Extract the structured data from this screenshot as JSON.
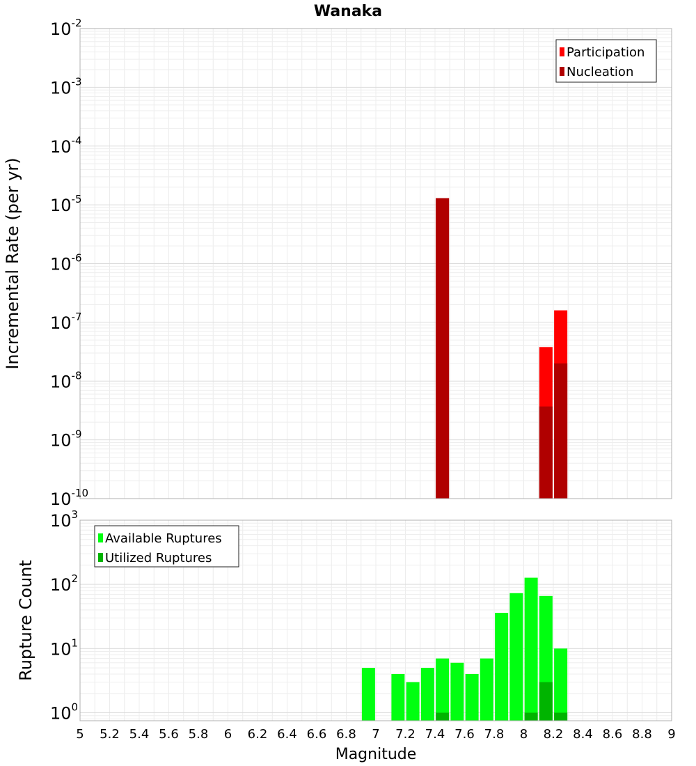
{
  "chart_data": [
    {
      "type": "bar",
      "title": "Wanaka",
      "xlabel": "Magnitude",
      "ylabel": "Incremental Rate (per yr)",
      "xlim": [
        5,
        9
      ],
      "ylim": [
        1e-10,
        0.01
      ],
      "yscale": "log",
      "x_ticks": [
        "5",
        "5.2",
        "5.4",
        "5.6",
        "5.8",
        "6",
        "6.2",
        "6.4",
        "6.6",
        "6.8",
        "7",
        "7.2",
        "7.4",
        "7.6",
        "7.8",
        "8",
        "8.2",
        "8.4",
        "8.6",
        "8.8",
        "9"
      ],
      "y_ticks": [
        {
          "base": "10",
          "exp": "-10"
        },
        {
          "base": "10",
          "exp": "-9"
        },
        {
          "base": "10",
          "exp": "-8"
        },
        {
          "base": "10",
          "exp": "-7"
        },
        {
          "base": "10",
          "exp": "-6"
        },
        {
          "base": "10",
          "exp": "-5"
        },
        {
          "base": "10",
          "exp": "-4"
        },
        {
          "base": "10",
          "exp": "-3"
        },
        {
          "base": "10",
          "exp": "-2"
        }
      ],
      "legend_position": "top-right",
      "grid": true,
      "series": [
        {
          "name": "Participation",
          "color": "#ff0000",
          "x": [
            7.45,
            8.15,
            8.25
          ],
          "values": [
            1.3e-05,
            3.8e-08,
            1.6e-07
          ]
        },
        {
          "name": "Nucleation",
          "color": "#b00000",
          "x": [
            7.45,
            8.15,
            8.25
          ],
          "values": [
            1.3e-05,
            3.7e-09,
            2e-08
          ]
        }
      ]
    },
    {
      "type": "bar",
      "xlabel": "Magnitude",
      "ylabel": "Rupture Count",
      "xlim": [
        5,
        9
      ],
      "ylim": [
        0.75,
        1000
      ],
      "yscale": "log",
      "y_ticks": [
        {
          "base": "10",
          "exp": "0",
          "value": 1
        },
        {
          "base": "10",
          "exp": "1",
          "value": 10
        },
        {
          "base": "10",
          "exp": "2",
          "value": 100
        },
        {
          "base": "10",
          "exp": "3",
          "value": 1000
        }
      ],
      "legend_position": "top-left",
      "grid": true,
      "series": [
        {
          "name": "Available Ruptures",
          "color": "#00ff10",
          "x": [
            6.95,
            7.15,
            7.25,
            7.35,
            7.45,
            7.55,
            7.65,
            7.75,
            7.85,
            7.95,
            8.05,
            8.15,
            8.25
          ],
          "values": [
            5,
            4,
            3,
            5,
            7,
            6,
            4,
            7,
            36,
            73,
            127,
            66,
            10
          ]
        },
        {
          "name": "Utilized Ruptures",
          "color": "#00b400",
          "x": [
            7.45,
            8.05,
            8.15,
            8.25
          ],
          "values": [
            1,
            1,
            3,
            1
          ]
        }
      ]
    }
  ]
}
